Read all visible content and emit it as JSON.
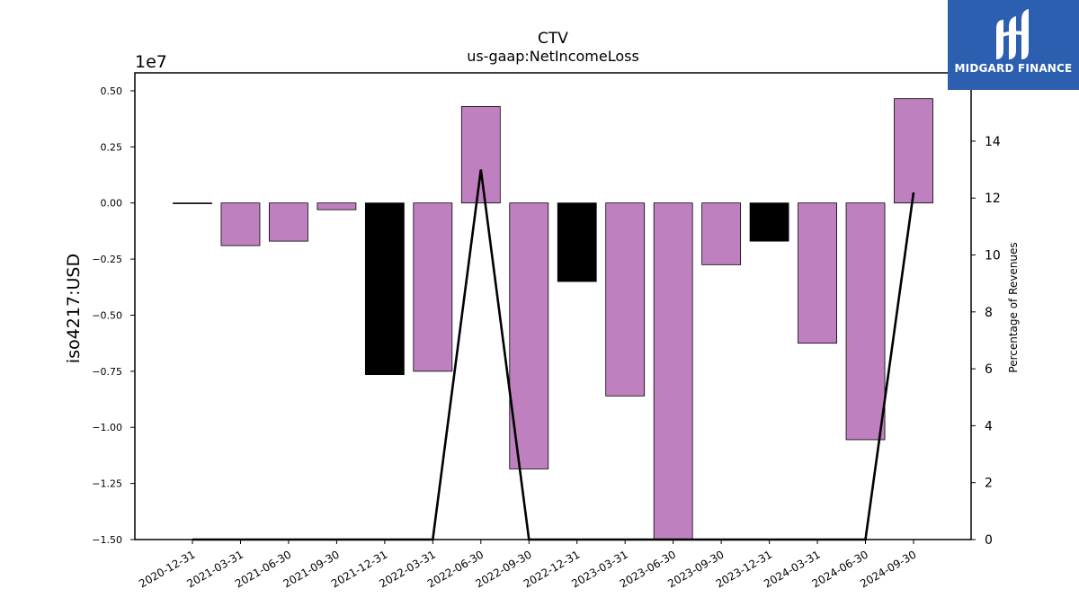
{
  "chart_data": {
    "type": "bar",
    "title": "CTV",
    "subtitle": "us-gaap:NetIncomeLoss",
    "ylabel": "iso4217:USD",
    "y2label": "Percentage of Revenues",
    "offset_label": "1e7",
    "categories": [
      "2020-12-31",
      "2021-03-31",
      "2021-06-30",
      "2021-09-30",
      "2021-12-31",
      "2022-03-31",
      "2022-06-30",
      "2022-09-30",
      "2022-12-31",
      "2023-03-31",
      "2023-06-30",
      "2023-09-30",
      "2023-12-31",
      "2024-03-31",
      "2024-06-30",
      "2024-09-30"
    ],
    "values": [
      -5e-05,
      -0.19,
      -0.17,
      -0.03,
      -0.765,
      -0.75,
      0.43,
      -1.185,
      -0.35,
      -0.86,
      -1.5,
      -0.275,
      -0.17,
      -0.625,
      -1.055,
      0.465
    ],
    "bar_colors": [
      "#000000",
      "#bf80bf",
      "#bf80bf",
      "#bf80bf",
      "#000000",
      "#bf80bf",
      "#bf80bf",
      "#bf80bf",
      "#000000",
      "#bf80bf",
      "#bf80bf",
      "#bf80bf",
      "#000000",
      "#bf80bf",
      "#bf80bf",
      "#bf80bf"
    ],
    "line_values": [
      0,
      0,
      0,
      0,
      0,
      0,
      13.0,
      0,
      0,
      0,
      0,
      0,
      0,
      0,
      0,
      12.2
    ],
    "ylim": [
      -1.5,
      0.58
    ],
    "y2lim": [
      0,
      16.4
    ],
    "yticks": [
      "0.50",
      "0.25",
      "0.00",
      "−0.25",
      "−0.50",
      "−0.75",
      "−1.00",
      "−1.25",
      "−1.50"
    ],
    "ytick_values": [
      0.5,
      0.25,
      0,
      -0.25,
      -0.5,
      -0.75,
      -1.0,
      -1.25,
      -1.5
    ],
    "y2ticks": [
      "0",
      "2",
      "4",
      "6",
      "8",
      "10",
      "12",
      "14"
    ],
    "y2tick_values": [
      0,
      2,
      4,
      6,
      8,
      10,
      12,
      14
    ],
    "line_color": "#000000",
    "grid": false
  },
  "logo": {
    "text": "MIDGARD FINANCE",
    "color": "#2d5fb0"
  }
}
